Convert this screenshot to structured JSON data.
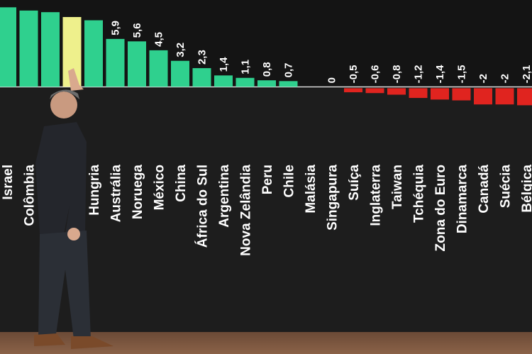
{
  "chart_data": {
    "type": "bar",
    "categories": [
      "Israel",
      "Colômbia",
      null,
      null,
      "Hungria",
      "Austrália",
      "Noruega",
      "México",
      "China",
      "África do Sul",
      "Argentina",
      "Nova Zelândia",
      "Peru",
      "Chile",
      "Malásia",
      "Singapura",
      "Suíça",
      "Inglaterra",
      "Taiwan",
      "Tchéquia",
      "Zona do Euro",
      "Dinamarca",
      "Canadá",
      "Suécia",
      "Bélgica"
    ],
    "values": [
      9.8,
      9.4,
      9.2,
      8.6,
      8.2,
      5.9,
      5.6,
      4.5,
      3.2,
      2.3,
      1.4,
      1.1,
      0.8,
      0.7,
      null,
      0,
      -0.5,
      -0.6,
      -0.8,
      -1.2,
      -1.4,
      -1.5,
      -2,
      -2,
      -2.1
    ],
    "value_labels": [
      null,
      null,
      null,
      null,
      null,
      "5,9",
      "5,6",
      "4,5",
      "3,2",
      "2,3",
      "1,4",
      "1,1",
      "0,8",
      "0,7",
      null,
      "0",
      "-0,5",
      "-0,6",
      "-0,8",
      "-1,2",
      "-1,4",
      "-1,5",
      "-2",
      "-2",
      "-2,1"
    ],
    "colors": [
      "#2fd08e",
      "#2fd08e",
      "#2fd08e",
      "#eef08c",
      "#2fd08e",
      "#2fd08e",
      "#2fd08e",
      "#2fd08e",
      "#2fd08e",
      "#2fd08e",
      "#2fd08e",
      "#2fd08e",
      "#2fd08e",
      "#2fd08e",
      "#2fd08e",
      "#2fd08e",
      "#e0241f",
      "#e0241f",
      "#e0241f",
      "#e0241f",
      "#e0241f",
      "#e0241f",
      "#e0241f",
      "#e0241f",
      "#e0241f"
    ],
    "ylim": [
      -2.2,
      10.7
    ]
  }
}
